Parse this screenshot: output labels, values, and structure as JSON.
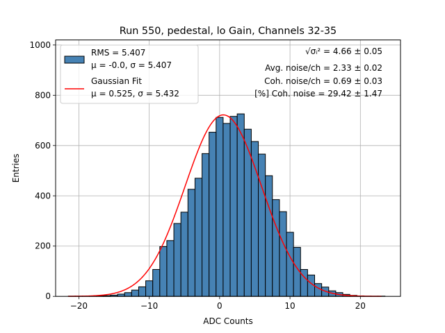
{
  "chart_data": {
    "type": "bar",
    "title": "Run 550, pedestal, lo Gain, Channels 32-35",
    "xlabel": "ADC Counts",
    "ylabel": "Entries",
    "xlim": [
      -23.3,
      25.7
    ],
    "ylim": [
      0,
      1020
    ],
    "xticks": [
      -20,
      -10,
      0,
      10,
      20
    ],
    "yticks": [
      0,
      200,
      400,
      600,
      800,
      1000
    ],
    "grid": true,
    "legend_position": "top-left",
    "colors": {
      "bars": "#4682b4",
      "bar_edge": "#000000",
      "fit": "#ff0000",
      "grid": "#b0b0b0"
    },
    "histogram": {
      "name": "RMS = 5.407",
      "stats_label": "μ = -0.0, σ = 5.407",
      "bin_width": 1.0,
      "bin_edges_start": -21.5,
      "counts": [
        1,
        1,
        1,
        1,
        2,
        3,
        5,
        9,
        15,
        25,
        38,
        62,
        107,
        198,
        222,
        290,
        335,
        426,
        470,
        568,
        653,
        712,
        688,
        716,
        726,
        665,
        616,
        566,
        480,
        385,
        337,
        255,
        195,
        107,
        85,
        51,
        37,
        22,
        15,
        8,
        4,
        2,
        1,
        1,
        1
      ]
    },
    "fit": {
      "name": "Gaussian Fit",
      "stats_label": "μ = 0.525, σ = 5.432",
      "mu": 0.525,
      "sigma": 5.432,
      "peak": 722,
      "x_range": [
        -21.5,
        23.0
      ]
    },
    "annotations": {
      "rms_label": "√σᵢ² = 4.66 ± 0.05",
      "avg_noise": "Avg. noise/ch = 2.33 ± 0.02",
      "coh_noise": "Coh. noise/ch = 0.69 ± 0.03",
      "coh_percent": "[%] Coh. noise = 29.42 ± 1.47"
    }
  }
}
